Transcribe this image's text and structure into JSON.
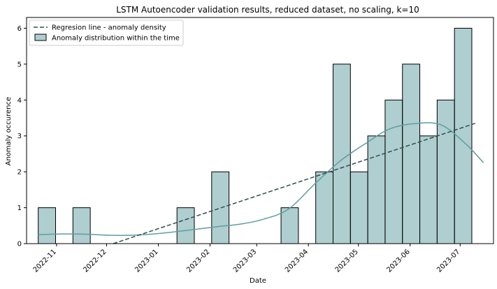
{
  "chart_data": {
    "type": "bar",
    "title": "LSTM Autoencoder validation results, reduced dataset, no scaling, k=10",
    "xlabel": "Date",
    "ylabel": "Anomaly occurence",
    "ylim": [
      0,
      6.3
    ],
    "yticks": [
      0,
      1,
      2,
      3,
      4,
      5,
      6
    ],
    "xlim": [
      "2022-10-14",
      "2023-07-21"
    ],
    "xticks": [
      "2022-11",
      "2022-12",
      "2023-01",
      "2023-02",
      "2023-03",
      "2023-04",
      "2023-05",
      "2023-06",
      "2023-07"
    ],
    "grid": false,
    "legend_position": "top-left",
    "legend": [
      "Regresion line - anomaly density",
      "Anomaly distribution within the time"
    ],
    "histogram": {
      "name": "Anomaly distribution within the time",
      "bin_start": "2022-10-21",
      "bin_width_days": 10.4,
      "counts": [
        1,
        0,
        1,
        0,
        0,
        0,
        0,
        0,
        1,
        0,
        2,
        0,
        0,
        0,
        1,
        0,
        2,
        5,
        2,
        3,
        4,
        5,
        3,
        4,
        6
      ],
      "fill": "#5f9ea0",
      "fill_opacity": 0.5,
      "edge": "#000000"
    },
    "kde": {
      "name": "density",
      "color": "#5f9ea0",
      "x": [
        "2022-10-21",
        "2022-11-05",
        "2022-11-20",
        "2022-12-05",
        "2022-12-20",
        "2023-01-05",
        "2023-01-20",
        "2023-02-05",
        "2023-02-20",
        "2023-03-05",
        "2023-03-20",
        "2023-04-05",
        "2023-04-20",
        "2023-05-05",
        "2023-05-20",
        "2023-06-05",
        "2023-06-20",
        "2023-07-05",
        "2023-07-15"
      ],
      "y": [
        0.25,
        0.27,
        0.26,
        0.23,
        0.24,
        0.3,
        0.38,
        0.47,
        0.55,
        0.68,
        0.96,
        1.67,
        2.3,
        2.78,
        3.2,
        3.35,
        3.3,
        2.75,
        2.25
      ]
    },
    "regression": {
      "name": "Regresion line - anomaly density",
      "color": "#2f4f4f",
      "x": [
        "2022-12-05",
        "2023-07-10"
      ],
      "y": [
        0,
        3.35
      ]
    }
  }
}
